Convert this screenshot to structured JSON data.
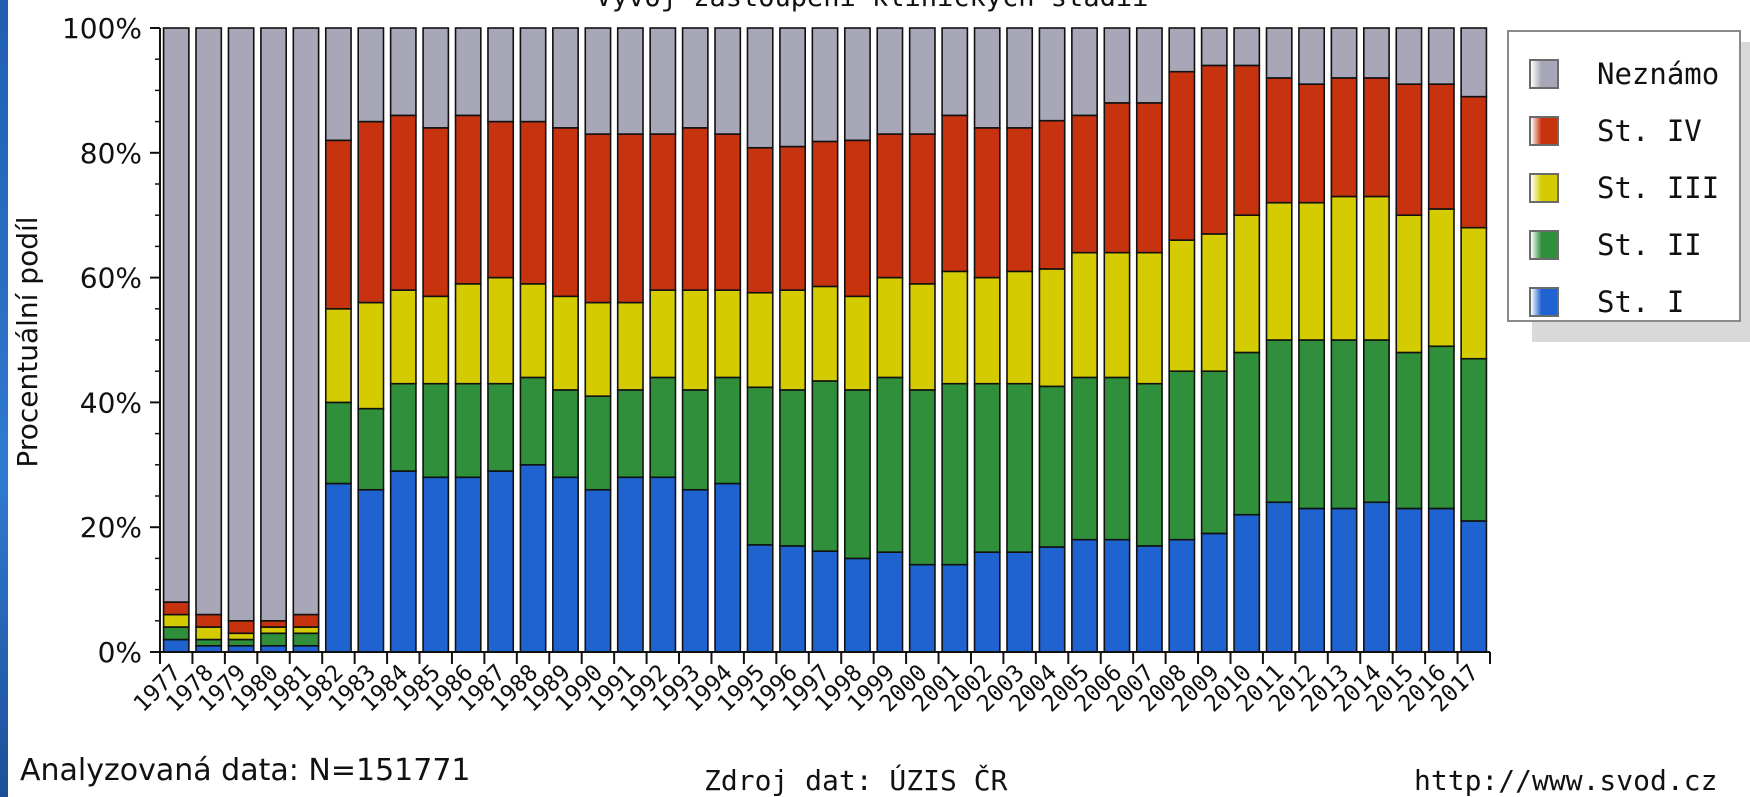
{
  "chart_data": {
    "type": "bar",
    "stacked": true,
    "title": "Vývoj zastoupení klinických stadií",
    "ylabel": "Procentuální podíl",
    "xlabel": "",
    "ylim": [
      0,
      100
    ],
    "yticks": [
      "0%",
      "20%",
      "40%",
      "60%",
      "80%",
      "100%"
    ],
    "categories": [
      "1977",
      "1978",
      "1979",
      "1980",
      "1981",
      "1982",
      "1983",
      "1984",
      "1985",
      "1986",
      "1987",
      "1988",
      "1989",
      "1990",
      "1991",
      "1992",
      "1993",
      "1994",
      "1995",
      "1996",
      "1997",
      "1998",
      "1999",
      "2000",
      "2001",
      "2002",
      "2003",
      "2004",
      "2005",
      "2006",
      "2007",
      "2008",
      "2009",
      "2010",
      "2011",
      "2012",
      "2013",
      "2014",
      "2015",
      "2016",
      "2017"
    ],
    "series": [
      {
        "name": "St. I",
        "color": "#1f63d0",
        "values": [
          2,
          1,
          1,
          1,
          1,
          27,
          26,
          29,
          28,
          28,
          29,
          30,
          28,
          26,
          28,
          28,
          26,
          27,
          17,
          17,
          16,
          15,
          16,
          14,
          14,
          16,
          16,
          17,
          18,
          18,
          17,
          18,
          19,
          22,
          24,
          23,
          23,
          24,
          23,
          23,
          21
        ]
      },
      {
        "name": "St. II",
        "color": "#2f8f3a",
        "values": [
          2,
          1,
          1,
          2,
          2,
          13,
          13,
          14,
          15,
          15,
          14,
          14,
          14,
          15,
          14,
          16,
          16,
          17,
          25,
          25,
          27,
          27,
          28,
          28,
          29,
          27,
          27,
          26,
          26,
          26,
          26,
          27,
          26,
          26,
          26,
          27,
          27,
          26,
          25,
          26,
          26
        ]
      },
      {
        "name": "St. III",
        "color": "#d4cc00",
        "values": [
          2,
          2,
          1,
          1,
          1,
          15,
          17,
          15,
          14,
          16,
          17,
          15,
          15,
          15,
          14,
          14,
          16,
          14,
          15,
          16,
          15,
          15,
          16,
          17,
          18,
          17,
          18,
          19,
          20,
          20,
          21,
          21,
          22,
          22,
          22,
          22,
          23,
          23,
          22,
          22,
          21
        ]
      },
      {
        "name": "St. IV",
        "color": "#c8330f",
        "values": [
          2,
          2,
          2,
          1,
          2,
          27,
          29,
          28,
          27,
          27,
          25,
          26,
          27,
          27,
          27,
          25,
          26,
          25,
          23,
          23,
          23,
          25,
          23,
          24,
          25,
          24,
          23,
          24,
          22,
          24,
          24,
          27,
          27,
          24,
          20,
          19,
          19,
          19,
          21,
          20,
          21
        ]
      },
      {
        "name": "Neznámo",
        "color": "#a7a7b7",
        "values": [
          92,
          94,
          95,
          95,
          94,
          18,
          15,
          14,
          16,
          14,
          15,
          15,
          16,
          17,
          17,
          17,
          16,
          17,
          19,
          19,
          18,
          18,
          17,
          17,
          14,
          16,
          16,
          15,
          14,
          12,
          12,
          7,
          6,
          6,
          8,
          9,
          8,
          8,
          9,
          9,
          11
        ]
      }
    ],
    "legend": {
      "position": "right",
      "order": [
        "Neznámo",
        "St. IV",
        "St. III",
        "St. II",
        "St. I"
      ]
    },
    "grid": false
  },
  "footer": {
    "left": "Analyzovaná data: N=151771",
    "middle": "Zdroj dat: ÚZIS ČR",
    "right": "http://www.svod.cz"
  }
}
